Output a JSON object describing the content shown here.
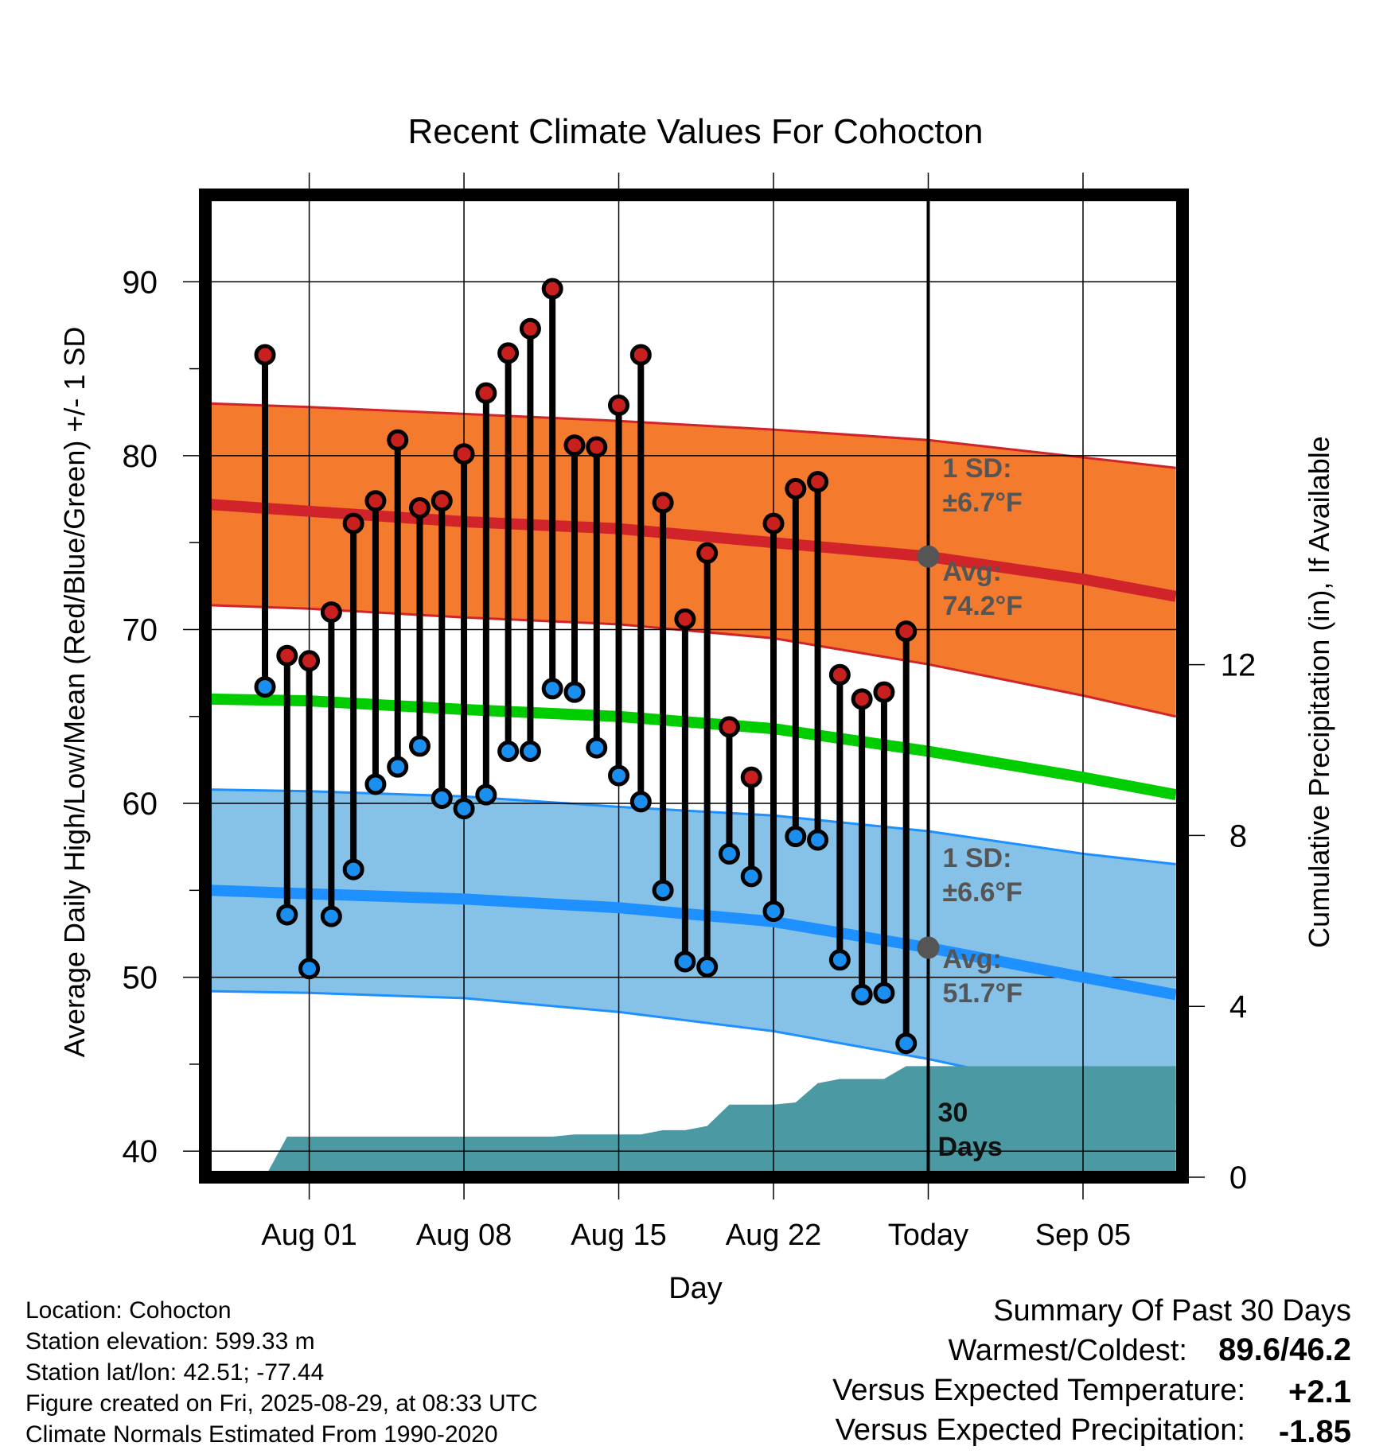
{
  "chart_data": {
    "type": "line",
    "title": "Recent Climate Values For Cohocton",
    "xlabel": "Day",
    "ylabel": "Average Daily High/Low/Mean (Red/Blue/Green) +/- 1 SD",
    "y2label": "Cumulative Precipitation (in), If Available",
    "ylim": [
      38.5,
      95
    ],
    "y2lim": [
      0,
      23
    ],
    "xlim": [
      -4.7,
      39.5
    ],
    "grid": true,
    "x_ticks": [
      {
        "day": 0,
        "label": "Aug 01"
      },
      {
        "day": 7,
        "label": "Aug 08"
      },
      {
        "day": 14,
        "label": "Aug 15"
      },
      {
        "day": 21,
        "label": "Aug 22"
      },
      {
        "day": 28,
        "label": "Today"
      },
      {
        "day": 35,
        "label": "Sep 05"
      }
    ],
    "y_ticks": [
      "40",
      "50",
      "60",
      "70",
      "80",
      "90"
    ],
    "y2_ticks": [
      "0",
      "4",
      "8",
      "12"
    ],
    "today_day": 28,
    "series": [
      {
        "name": "High",
        "color": "#c8201f",
        "values": [
          85.8,
          68.5,
          68.2,
          71.0,
          76.1,
          77.4,
          80.9,
          77.0,
          77.4,
          80.1,
          83.6,
          85.9,
          87.3,
          89.6,
          80.6,
          80.5,
          82.9,
          85.8,
          77.3,
          70.6,
          74.4,
          64.4,
          61.5,
          76.1,
          78.1,
          78.5,
          67.4,
          66.0,
          66.4,
          69.9
        ]
      },
      {
        "name": "Low",
        "color": "#1a8ff0",
        "values": [
          66.7,
          53.6,
          50.5,
          53.5,
          56.2,
          61.1,
          62.1,
          63.3,
          60.3,
          59.7,
          60.5,
          63.0,
          63.0,
          66.6,
          66.4,
          63.2,
          61.6,
          60.1,
          55.0,
          50.9,
          50.6,
          57.1,
          55.8,
          53.8,
          58.1,
          57.9,
          51.0,
          49.0,
          49.1,
          46.2
        ]
      }
    ],
    "record_days": [
      -2,
      -1,
      0,
      1,
      2,
      3,
      4,
      5,
      6,
      7,
      8,
      9,
      10,
      11,
      12,
      13,
      14,
      15,
      16,
      17,
      18,
      19,
      20,
      21,
      22,
      23,
      24,
      25,
      26,
      27
    ],
    "normals": {
      "days": [
        -4.5,
        0,
        7,
        14,
        21,
        28,
        35,
        39.2
      ],
      "high_mean": [
        77.2,
        76.8,
        76.2,
        75.8,
        75.0,
        74.2,
        72.9,
        71.9
      ],
      "high_upper": [
        83.0,
        82.8,
        82.4,
        82.0,
        81.5,
        80.9,
        79.9,
        79.3
      ],
      "high_lower": [
        71.4,
        71.2,
        70.7,
        70.3,
        69.5,
        68.0,
        66.2,
        65.0
      ],
      "mean": [
        66.0,
        65.9,
        65.4,
        65.0,
        64.3,
        63.0,
        61.5,
        60.5
      ],
      "low_mean": [
        55.0,
        54.8,
        54.5,
        54.0,
        53.2,
        51.7,
        50.0,
        49.0
      ],
      "low_upper": [
        60.8,
        60.7,
        60.4,
        59.8,
        59.3,
        58.4,
        57.1,
        56.5
      ],
      "low_lower": [
        49.2,
        49.1,
        48.8,
        48.0,
        46.9,
        45.3,
        43.4,
        42.8
      ],
      "colors": {
        "high_band": "#f47a2e",
        "high_line": "#d0242a",
        "low_band": "#86c2e8",
        "low_line": "#1e90ff",
        "mean_line": "#00cc00"
      }
    },
    "precip": {
      "color": "#4b9aa3",
      "days": [
        -2,
        -1,
        0,
        1,
        2,
        3,
        4,
        5,
        6,
        7,
        8,
        9,
        10,
        11,
        12,
        13,
        14,
        15,
        16,
        17,
        18,
        19,
        20,
        21,
        22,
        23,
        24,
        25,
        26,
        27,
        28,
        39.2
      ],
      "values": [
        0.0,
        0.95,
        0.95,
        0.95,
        0.95,
        0.95,
        0.95,
        0.95,
        0.95,
        0.95,
        0.95,
        0.95,
        0.95,
        0.95,
        1.0,
        1.0,
        1.0,
        1.0,
        1.1,
        1.1,
        1.2,
        1.7,
        1.7,
        1.7,
        1.75,
        2.2,
        2.3,
        2.3,
        2.3,
        2.6,
        2.6,
        2.6
      ]
    },
    "annotations": {
      "high_sd_title": "1 SD:",
      "high_sd_value": "±6.7°F",
      "high_avg_title": "Avg:",
      "high_avg_value": "74.2°F",
      "low_sd_title": "1 SD:",
      "low_sd_value": "±6.6°F",
      "low_avg_title": "Avg:",
      "low_avg_value": "51.7°F",
      "period_line1": "30",
      "period_line2": "Days",
      "color": "#555555"
    }
  },
  "footer": {
    "location": "Location: Cohocton",
    "elevation": "Station elevation: 599.33 m",
    "latlon": "Station lat/lon: 42.51; -77.44",
    "created": "Figure created on Fri, 2025-08-29, at 08:33 UTC",
    "normals": "Climate Normals Estimated From 1990-2020"
  },
  "summary": {
    "title": "Summary Of Past 30 Days",
    "warmest_label": "Warmest/Coldest:",
    "warmest_value": "89.6/46.2",
    "temp_label": "Versus Expected Temperature:",
    "temp_value": "+2.1",
    "temp_color": "#c8201f",
    "precip_label": "Versus Expected Precipitation:",
    "precip_value": "-1.85",
    "precip_color": "#a0522d"
  }
}
